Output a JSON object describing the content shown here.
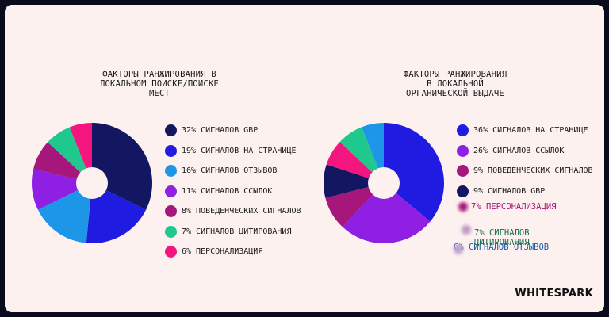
{
  "charts": [
    {
      "title": "ФАКТОРЫ РАНЖИРОВАНИЯ В\nЛОКАЛЬНОМ ПОИСКЕ/ПОИСКЕ\nМЕСТ",
      "legend": [
        {
          "label": "32% СИГНАЛОВ GBP",
          "color": "#131660"
        },
        {
          "label": "19% СИГНАЛОВ НА СТРАНИЦЕ",
          "color": "#1f1be0"
        },
        {
          "label": "16% СИГНАЛОВ ОТЗЫВОВ",
          "color": "#1d96e8"
        },
        {
          "label": "11% СИГНАЛОВ ССЫЛОК",
          "color": "#8e1fe3"
        },
        {
          "label": "8% ПОВЕДЕНЧЕСКИХ СИГНАЛОВ",
          "color": "#a5177a"
        },
        {
          "label": "7% СИГНАЛОВ ЦИТИРОВАНИЯ",
          "color": "#1fc98e"
        },
        {
          "label": "6% ПЕРСОНАЛИЗАЦИЯ",
          "color": "#f5157e"
        }
      ]
    },
    {
      "title": "ФАКТОРЫ РАНЖИРОВАНИЯ\nВ ЛОКАЛЬНОЙ\nОРГАНИЧЕСКОЙ ВЫДАЧЕ",
      "legend": [
        {
          "label": "36% СИГНАЛОВ НА СТРАНИЦЕ",
          "color": "#1f1be0"
        },
        {
          "label": "26% СИГНАЛОВ ССЫЛОК",
          "color": "#8e1fe3"
        },
        {
          "label": "9% ПОВЕДЕНЧЕСКИХ СИГНАЛОВ",
          "color": "#a5177a"
        },
        {
          "label": "9% СИГНАЛОВ GBP",
          "color": "#131660"
        }
      ],
      "extra_labels": [
        {
          "label": "7% ПЕРСОНАЛИЗАЦИЯ",
          "color": "#a5177a"
        },
        {
          "label": "7% СИГНАЛОВ\nЦИТИРОВАНИЯ",
          "color": "#1a6e4e"
        },
        {
          "label": "6% СИГНАЛОВ ОТЗЫВОВ",
          "color": "#1d5aa8"
        }
      ]
    }
  ],
  "watermark": "WHITESPARK",
  "chart_data": [
    {
      "type": "pie",
      "title": "ФАКТОРЫ РАНЖИРОВАНИЯ В ЛОКАЛЬНОМ ПОИСКЕ/ПОИСКЕ МЕСТ",
      "donut": true,
      "slices": [
        {
          "label": "СИГНАЛОВ GBP",
          "value": 32,
          "color": "#131660"
        },
        {
          "label": "СИГНАЛОВ НА СТРАНИЦЕ",
          "value": 19,
          "color": "#1f1be0"
        },
        {
          "label": "СИГНАЛОВ ОТЗЫВОВ",
          "value": 16,
          "color": "#1d96e8"
        },
        {
          "label": "СИГНАЛОВ ССЫЛОК",
          "value": 11,
          "color": "#8e1fe3"
        },
        {
          "label": "ПОВЕДЕНЧЕСКИХ СИГНАЛОВ",
          "value": 8,
          "color": "#a5177a"
        },
        {
          "label": "СИГНАЛОВ ЦИТИРОВАНИЯ",
          "value": 7,
          "color": "#1fc98e"
        },
        {
          "label": "ПЕРСОНАЛИЗАЦИЯ",
          "value": 6,
          "color": "#f5157e"
        }
      ]
    },
    {
      "type": "pie",
      "title": "ФАКТОРЫ РАНЖИРОВАНИЯ В ЛОКАЛЬНОЙ ОРГАНИЧЕСКОЙ ВЫДАЧЕ",
      "donut": true,
      "slices": [
        {
          "label": "СИГНАЛОВ НА СТРАНИЦЕ",
          "value": 36,
          "color": "#1f1be0"
        },
        {
          "label": "СИГНАЛОВ ССЫЛОК",
          "value": 26,
          "color": "#8e1fe3"
        },
        {
          "label": "ПОВЕДЕНЧЕСКИХ СИГНАЛОВ",
          "value": 9,
          "color": "#a5177a"
        },
        {
          "label": "СИГНАЛОВ GBP",
          "value": 9,
          "color": "#131660"
        },
        {
          "label": "ПЕРСОНАЛИЗАЦИЯ",
          "value": 7,
          "color": "#f5157e"
        },
        {
          "label": "СИГНАЛОВ ЦИТИРОВАНИЯ",
          "value": 7,
          "color": "#1fc98e"
        },
        {
          "label": "СИГНАЛОВ ОТЗЫВОВ",
          "value": 6,
          "color": "#1d96e8"
        }
      ]
    }
  ]
}
